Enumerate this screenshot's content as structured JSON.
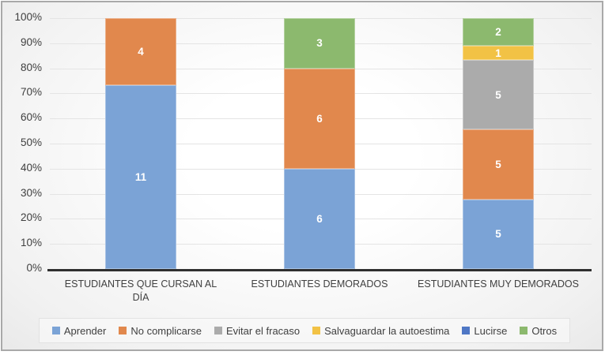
{
  "chart_data": {
    "type": "bar",
    "subtype": "stacked-100-percent",
    "title": "",
    "xlabel": "",
    "ylabel": "",
    "categories": [
      "ESTUDIANTES QUE CURSAN AL DÍA",
      "ESTUDIANTES DEMORADOS",
      "ESTUDIANTES MUY DEMORADOS"
    ],
    "series": [
      {
        "name": "Aprender",
        "color": "#7BA3D6",
        "values": [
          11,
          6,
          5
        ]
      },
      {
        "name": "No complicarse",
        "color": "#E1884D",
        "values": [
          4,
          6,
          5
        ]
      },
      {
        "name": "Evitar el fracaso",
        "color": "#ABABAB",
        "values": [
          0,
          0,
          5
        ]
      },
      {
        "name": "Salvaguardar la autoestima",
        "color": "#F2C245",
        "values": [
          0,
          0,
          1
        ]
      },
      {
        "name": "Lucirse",
        "color": "#4F77C5",
        "values": [
          0,
          0,
          0
        ]
      },
      {
        "name": "Otros",
        "color": "#8CB96E",
        "values": [
          0,
          3,
          2
        ]
      }
    ],
    "category_totals": [
      15,
      15,
      18
    ],
    "y_ticks": [
      "0%",
      "10%",
      "20%",
      "30%",
      "40%",
      "50%",
      "60%",
      "70%",
      "80%",
      "90%",
      "100%"
    ],
    "ylim": [
      0,
      100
    ],
    "grid": true,
    "legend_position": "bottom",
    "value_label_color": "#FFFFFF",
    "axis_text_color": "#3F3F3F"
  }
}
